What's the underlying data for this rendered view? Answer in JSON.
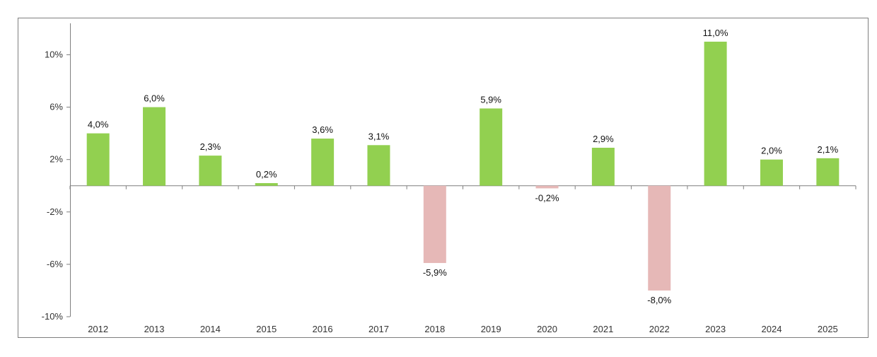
{
  "chart_data": {
    "type": "bar",
    "title": "",
    "xlabel": "",
    "ylabel": "",
    "categories": [
      "2012",
      "2013",
      "2014",
      "2015",
      "2016",
      "2017",
      "2018",
      "2019",
      "2020",
      "2021",
      "2022",
      "2023",
      "2024",
      "2025"
    ],
    "values": [
      4.0,
      6.0,
      2.3,
      0.2,
      3.6,
      3.1,
      -5.9,
      5.9,
      -0.2,
      2.9,
      -8.0,
      11.0,
      2.0,
      2.1
    ],
    "data_labels": [
      "4,0%",
      "6,0%",
      "2,3%",
      "0,2%",
      "3,6%",
      "3,1%",
      "-5,9%",
      "5,9%",
      "-0,2%",
      "2,9%",
      "-8,0%",
      "11,0%",
      "2,0%",
      "2,1%"
    ],
    "ylim": [
      -10,
      12.4
    ],
    "y_ticks": [
      10,
      6,
      2,
      -2,
      -6,
      -10
    ],
    "y_tick_labels": [
      "10%",
      "6%",
      "2%",
      "-2%",
      "-6%",
      "-10%"
    ],
    "grid": false,
    "legend": "none",
    "colors": {
      "positive": "#92d050",
      "negative": "#e6b8b7",
      "axis": "#7f7f7f",
      "frame": "#7f7f7f"
    }
  }
}
